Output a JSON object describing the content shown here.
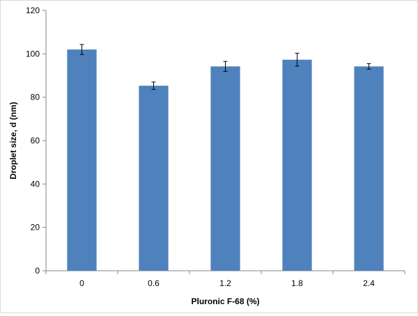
{
  "chart_data": {
    "type": "bar",
    "title": "",
    "xlabel": "Pluronic F-68 (%)",
    "ylabel": "Droplet size, d (nm)",
    "categories": [
      "0",
      "0.6",
      "1.2",
      "1.8",
      "2.4"
    ],
    "values": [
      102,
      85.3,
      94.2,
      97.3,
      94.2
    ],
    "error": [
      2.3,
      1.7,
      2.3,
      3.0,
      1.3
    ],
    "ylim": [
      0,
      120
    ],
    "yticks": [
      0,
      20,
      40,
      60,
      80,
      100,
      120
    ],
    "yticks_labels": [
      "0",
      "20",
      "40",
      "60",
      "80",
      "100",
      "120"
    ],
    "grid": false,
    "legend": "none",
    "bar_color": "#4F81BD",
    "error_color": "#000000"
  }
}
